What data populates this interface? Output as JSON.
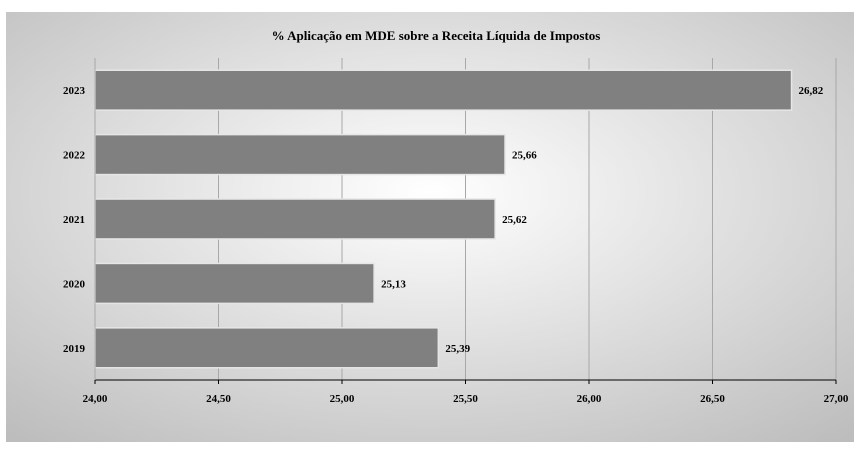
{
  "chart_data": {
    "type": "bar",
    "orientation": "horizontal",
    "title": "% Aplicação em MDE sobre a Receita Líquida de Impostos",
    "categories": [
      "2023",
      "2022",
      "2021",
      "2020",
      "2019"
    ],
    "values": [
      26.82,
      25.66,
      25.62,
      25.13,
      25.39
    ],
    "value_labels": [
      "26,82",
      "25,66",
      "25,62",
      "25,13",
      "25,39"
    ],
    "xlim": [
      24.0,
      27.0
    ],
    "x_ticks": [
      24.0,
      24.5,
      25.0,
      25.5,
      26.0,
      26.5,
      27.0
    ],
    "x_tick_labels": [
      "24,00",
      "24,50",
      "25,00",
      "25,50",
      "26,00",
      "26,50",
      "27,00"
    ],
    "xlabel": "",
    "ylabel": "",
    "grid": true,
    "legend": "none",
    "colors": {
      "bar": "#808080",
      "bar_edge": "#e6e6e6",
      "grid": "#a8a8a8",
      "axis": "#000000",
      "background_light": "#ffffff",
      "background_dark": "#bdbdbd"
    }
  }
}
